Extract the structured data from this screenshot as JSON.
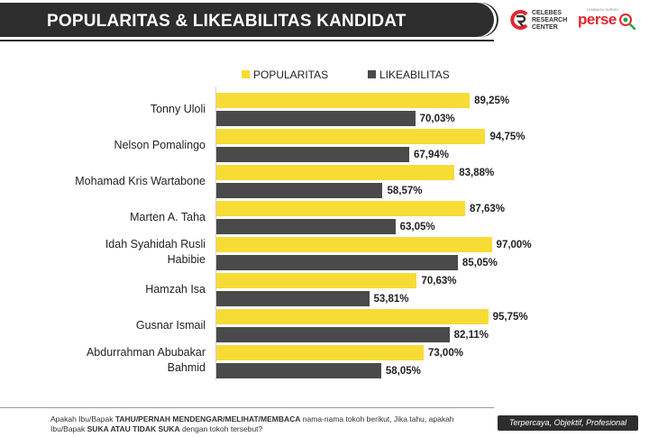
{
  "header": {
    "title": "POPULARITAS & LIKEABILITAS KANDIDAT",
    "logo_crc_lines": [
      "CELEBES",
      "RESEARCH",
      "CENTER"
    ],
    "logo_persepsi": "perse",
    "logo_persepsi_small": "LEMBAGA SURVEI"
  },
  "colors": {
    "popularitas": "#f7dc35",
    "likeabilitas": "#4a4a4a",
    "header_bg": "#2d2d2d",
    "brand_red": "#e3262f"
  },
  "chart_data": {
    "type": "bar",
    "orientation": "horizontal",
    "categories": [
      "Tonny Uloli",
      "Nelson Pomalingo",
      "Mohamad Kris Wartabone",
      "Marten A. Taha",
      "Idah Syahidah Rusli Habibie",
      "Hamzah Isa",
      "Gusnar Ismail",
      "Abdurrahman Abubakar Bahmid"
    ],
    "series": [
      {
        "name": "POPULARITAS",
        "values": [
          89.25,
          94.75,
          83.88,
          87.63,
          97.0,
          70.63,
          95.75,
          73.0
        ],
        "labels": [
          "89,25%",
          "94,75%",
          "83,88%",
          "87,63%",
          "97,00%",
          "70,63%",
          "95,75%",
          "73,00%"
        ]
      },
      {
        "name": "LIKEABILITAS",
        "values": [
          70.03,
          67.94,
          58.57,
          63.05,
          85.05,
          53.81,
          82.11,
          58.05
        ],
        "labels": [
          "70,03%",
          "67,94%",
          "58,57%",
          "63,05%",
          "85,05%",
          "53,81%",
          "82,11%",
          "58,05%"
        ]
      }
    ],
    "xlim": [
      0,
      100
    ],
    "legend_position": "top",
    "grid": false
  },
  "footer": {
    "note_parts": [
      {
        "text": "Apakah Ibu/Bapak ",
        "bold": false
      },
      {
        "text": "TAHU/PERNAH MENDENGAR/MELIHAT/MEMBACA",
        "bold": true
      },
      {
        "text": " nama-nama tokoh berikut, Jika tahu, apakah Ibu/Bapak ",
        "bold": false
      },
      {
        "text": "SUKA ATAU TIDAK SUKA",
        "bold": true
      },
      {
        "text": " dengan tokoh tersebut?",
        "bold": false
      }
    ],
    "tagline": "Terpercaya, Objektif, Profesional"
  }
}
